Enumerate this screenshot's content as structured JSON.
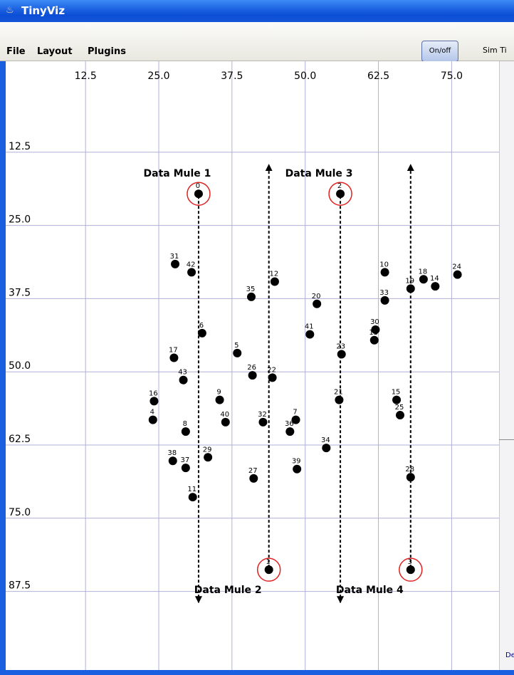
{
  "window": {
    "title": "TinyViz",
    "icon": "java-cup-icon"
  },
  "menu": {
    "items": [
      "File",
      "Layout",
      "Plugins"
    ]
  },
  "toolbar": {
    "onoff_label": "On/off",
    "sim_time_label": "Sim Ti"
  },
  "side_panel_text": "De",
  "grid": {
    "x_ticks": [
      "12.5",
      "25.0",
      "37.5",
      "50.0",
      "62.5",
      "75.0",
      "87.5"
    ],
    "y_ticks": [
      "12.5",
      "25.0",
      "37.5",
      "50.0",
      "62.5",
      "75.0",
      "87.5"
    ],
    "gridline_color": "#b0b0d8"
  },
  "mules": [
    {
      "id": 0,
      "label": "Data Mule 1",
      "direction": "down"
    },
    {
      "id": 1,
      "label": "Data Mule 2",
      "direction": "up"
    },
    {
      "id": 2,
      "label": "Data Mule 3",
      "direction": "down"
    },
    {
      "id": 3,
      "label": "Data Mule 4",
      "direction": "up"
    }
  ],
  "nodes": [
    {
      "id": "0",
      "x": 31.8,
      "y": 19.6,
      "mule": true
    },
    {
      "id": "1",
      "x": 43.8,
      "y": 83.8,
      "mule": true
    },
    {
      "id": "2",
      "x": 56.0,
      "y": 19.6,
      "mule": true
    },
    {
      "id": "3",
      "x": 68.0,
      "y": 83.8,
      "mule": true
    },
    {
      "id": "4",
      "x": 24.0,
      "y": 58.2
    },
    {
      "id": "5",
      "x": 38.4,
      "y": 46.8
    },
    {
      "id": "6",
      "x": 32.4,
      "y": 43.4
    },
    {
      "id": "7",
      "x": 48.4,
      "y": 58.2
    },
    {
      "id": "8",
      "x": 29.6,
      "y": 60.2
    },
    {
      "id": "9",
      "x": 35.4,
      "y": 54.8
    },
    {
      "id": "10",
      "x": 63.6,
      "y": 33.0
    },
    {
      "id": "11",
      "x": 30.8,
      "y": 71.4
    },
    {
      "id": "12",
      "x": 44.8,
      "y": 34.6
    },
    {
      "id": "13",
      "x": 61.8,
      "y": 44.6
    },
    {
      "id": "14",
      "x": 72.2,
      "y": 35.4
    },
    {
      "id": "15",
      "x": 65.6,
      "y": 54.8
    },
    {
      "id": "16",
      "x": 24.2,
      "y": 55.0
    },
    {
      "id": "17",
      "x": 27.6,
      "y": 47.6
    },
    {
      "id": "18",
      "x": 70.2,
      "y": 34.2
    },
    {
      "id": "19",
      "x": 68.0,
      "y": 35.8
    },
    {
      "id": "20",
      "x": 52.0,
      "y": 38.4
    },
    {
      "id": "21",
      "x": 55.8,
      "y": 54.8
    },
    {
      "id": "22",
      "x": 44.4,
      "y": 51.0
    },
    {
      "id": "23",
      "x": 56.2,
      "y": 47.0
    },
    {
      "id": "24",
      "x": 76.0,
      "y": 33.4
    },
    {
      "id": "25",
      "x": 66.2,
      "y": 57.4
    },
    {
      "id": "26",
      "x": 41.0,
      "y": 50.6
    },
    {
      "id": "27",
      "x": 41.2,
      "y": 68.2
    },
    {
      "id": "28",
      "x": 68.0,
      "y": 68.0
    },
    {
      "id": "29",
      "x": 33.4,
      "y": 64.6
    },
    {
      "id": "30",
      "x": 62.0,
      "y": 42.8
    },
    {
      "id": "31",
      "x": 27.8,
      "y": 31.6
    },
    {
      "id": "32",
      "x": 42.8,
      "y": 58.6
    },
    {
      "id": "33",
      "x": 63.6,
      "y": 37.8
    },
    {
      "id": "34",
      "x": 53.6,
      "y": 63.0
    },
    {
      "id": "35",
      "x": 40.8,
      "y": 37.2
    },
    {
      "id": "36",
      "x": 47.4,
      "y": 60.2
    },
    {
      "id": "37",
      "x": 29.6,
      "y": 66.4
    },
    {
      "id": "38",
      "x": 27.4,
      "y": 65.2
    },
    {
      "id": "39",
      "x": 48.6,
      "y": 66.6
    },
    {
      "id": "40",
      "x": 36.4,
      "y": 58.6
    },
    {
      "id": "41",
      "x": 50.8,
      "y": 43.6
    },
    {
      "id": "42",
      "x": 30.6,
      "y": 33.0
    },
    {
      "id": "43",
      "x": 29.2,
      "y": 51.4
    }
  ]
}
